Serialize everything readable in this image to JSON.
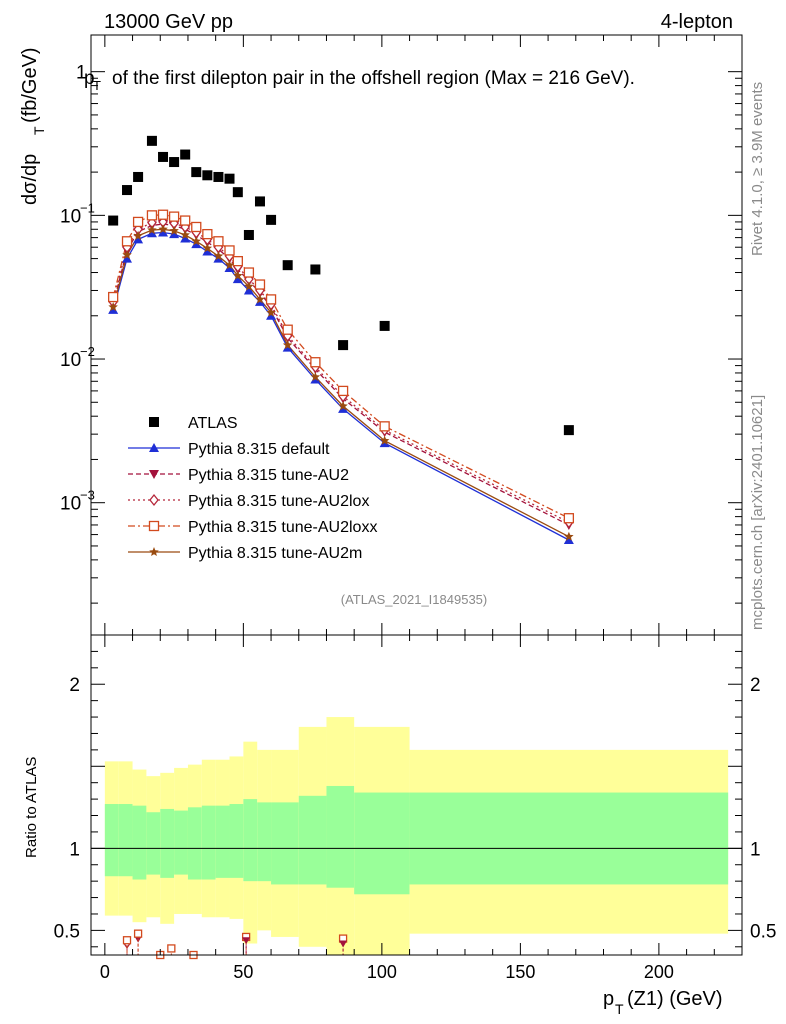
{
  "header": {
    "energy": "13000 GeV pp",
    "channel": "4-lepton"
  },
  "title_pre": "p",
  "title_main": "of the first dilepton pair in the offshell region (Max = 216 GeV).",
  "side_text_top": "Rivet 4.1.0, ≥ 3.9M events",
  "side_text_bottom": "mcplots.cern.ch [arXiv:2401.10621]",
  "watermark": "(ATLAS_2021_I1849535)",
  "chart_data": {
    "type": "scatter",
    "title": "pT of the first dilepton pair in the offshell region (Max = 216 GeV).",
    "ylabel_main": "dσ/dp",
    "ylabel_main_unit": "(fb/GeV)",
    "ylabel_sub": "T",
    "ylabel_ratio": "Ratio to ATLAS",
    "xlabel": "p",
    "xlabel_sub": "T",
    "xlabel_rest": "(Z1) (GeV)",
    "xlim": [
      -5,
      230
    ],
    "ylim_main": [
      0.00012,
      1.8
    ],
    "ylim_ratio": [
      0.35,
      2.3
    ],
    "x_ticks": [
      "0",
      "50",
      "100",
      "150",
      "200"
    ],
    "x_tick_values": [
      0,
      50,
      100,
      150,
      200
    ],
    "y_ticks_main": [
      {
        "v": 1,
        "base": "1",
        "exp": ""
      },
      {
        "v": 0.1,
        "base": "10",
        "exp": "−1"
      },
      {
        "v": 0.01,
        "base": "10",
        "exp": "−2"
      },
      {
        "v": 0.001,
        "base": "10",
        "exp": "−3"
      }
    ],
    "y_ticks_ratio": [
      {
        "v": 0.5,
        "label": "0.5"
      },
      {
        "v": 1,
        "label": "1"
      },
      {
        "v": 2,
        "label": "2"
      }
    ],
    "bin_edges": [
      0,
      5,
      10,
      15,
      20,
      25,
      30,
      35,
      40,
      45,
      50,
      55,
      60,
      70,
      80,
      90,
      110,
      225
    ],
    "bin_centers": [
      2.5,
      7.5,
      12.5,
      17.5,
      22.5,
      27.5,
      32.5,
      37.5,
      42.5,
      47.5,
      52.5,
      57.5,
      62.5,
      70,
      80,
      90,
      100,
      167.5
    ],
    "atlas_x": [
      3,
      8,
      12,
      17,
      21,
      25,
      29,
      33,
      37,
      41,
      45,
      48,
      52,
      56,
      60,
      66,
      76,
      86,
      101,
      167.5
    ],
    "atlas_y": [
      0.092,
      0.15,
      0.185,
      0.33,
      0.255,
      0.235,
      0.265,
      0.2,
      0.19,
      0.185,
      0.18,
      0.145,
      0.073,
      0.125,
      0.093,
      0.045,
      0.042,
      0.0125,
      0.017,
      0.0032
    ],
    "mc_x": [
      3,
      8,
      12,
      17,
      21,
      25,
      29,
      33,
      37,
      41,
      45,
      48,
      52,
      56,
      60,
      66,
      76,
      86,
      101,
      167.5
    ],
    "series": [
      {
        "name": "ATLAS",
        "color": "#000000",
        "marker": "square",
        "style": "none"
      },
      {
        "name": "Pythia 8.315 default",
        "color": "#1f2fd6",
        "marker": "triangle-up",
        "style": "solid",
        "values": [
          0.022,
          0.05,
          0.068,
          0.075,
          0.076,
          0.074,
          0.069,
          0.063,
          0.056,
          0.05,
          0.043,
          0.036,
          0.03,
          0.025,
          0.02,
          0.012,
          0.0072,
          0.0045,
          0.0026,
          0.00055
        ]
      },
      {
        "name": "Pythia 8.315 tune-AU2",
        "color": "#a3123c",
        "marker": "triangle-down",
        "style": "dashed",
        "values": [
          0.024,
          0.057,
          0.077,
          0.085,
          0.087,
          0.085,
          0.08,
          0.073,
          0.065,
          0.058,
          0.05,
          0.042,
          0.035,
          0.029,
          0.023,
          0.014,
          0.0085,
          0.0053,
          0.0031,
          0.0007
        ]
      },
      {
        "name": "Pythia 8.315 tune-AU2lox",
        "color": "#b5263a",
        "marker": "diamond-open",
        "style": "dotted",
        "values": [
          0.025,
          0.06,
          0.08,
          0.089,
          0.09,
          0.088,
          0.083,
          0.076,
          0.068,
          0.06,
          0.052,
          0.044,
          0.036,
          0.03,
          0.024,
          0.0145,
          0.0088,
          0.0055,
          0.0032,
          0.00073
        ]
      },
      {
        "name": "Pythia 8.315 tune-AU2loxx",
        "color": "#d24a1e",
        "marker": "square-open",
        "style": "dashdot",
        "values": [
          0.027,
          0.066,
          0.09,
          0.1,
          0.101,
          0.098,
          0.092,
          0.083,
          0.074,
          0.066,
          0.057,
          0.048,
          0.04,
          0.033,
          0.026,
          0.016,
          0.0095,
          0.006,
          0.0034,
          0.00078
        ]
      },
      {
        "name": "Pythia 8.315 tune-AU2m",
        "color": "#9a4b10",
        "marker": "star",
        "style": "solid",
        "values": [
          0.023,
          0.053,
          0.072,
          0.079,
          0.08,
          0.078,
          0.073,
          0.066,
          0.059,
          0.052,
          0.045,
          0.038,
          0.032,
          0.026,
          0.021,
          0.0125,
          0.0075,
          0.0047,
          0.0027,
          0.00058
        ]
      }
    ],
    "ratio_band_green": {
      "lo": [
        0.83,
        0.83,
        0.81,
        0.84,
        0.82,
        0.84,
        0.81,
        0.81,
        0.82,
        0.82,
        0.8,
        0.8,
        0.78,
        0.78,
        0.76,
        0.72,
        0.78
      ],
      "hi": [
        1.27,
        1.27,
        1.26,
        1.22,
        1.24,
        1.23,
        1.25,
        1.26,
        1.26,
        1.27,
        1.3,
        1.28,
        1.28,
        1.32,
        1.38,
        1.34,
        1.34
      ]
    },
    "ratio_band_yellow": {
      "lo": [
        0.59,
        0.59,
        0.55,
        0.58,
        0.54,
        0.6,
        0.6,
        0.58,
        0.58,
        0.57,
        0.42,
        0.5,
        0.46,
        0.4,
        0.3,
        0.3,
        0.48
      ],
      "hi": [
        1.53,
        1.53,
        1.48,
        1.44,
        1.46,
        1.49,
        1.51,
        1.54,
        1.54,
        1.56,
        1.65,
        1.6,
        1.6,
        1.74,
        1.8,
        1.74,
        1.6
      ]
    },
    "ratio_points": [
      {
        "series": 2,
        "x": 8,
        "y": 0.41
      },
      {
        "series": 2,
        "x": 12,
        "y": 0.45
      },
      {
        "series": 3,
        "x": 8,
        "y": 0.42
      },
      {
        "series": 4,
        "x": 8,
        "y": 0.44
      },
      {
        "series": 4,
        "x": 12,
        "y": 0.48
      },
      {
        "series": 4,
        "x": 20,
        "y": 0.35
      },
      {
        "series": 4,
        "x": 24,
        "y": 0.39
      },
      {
        "series": 4,
        "x": 32,
        "y": 0.35
      },
      {
        "series": 4,
        "x": 51,
        "y": 0.46
      },
      {
        "series": 4,
        "x": 86,
        "y": 0.45
      },
      {
        "series": 2,
        "x": 51,
        "y": 0.44
      },
      {
        "series": 2,
        "x": 86,
        "y": 0.42
      }
    ]
  }
}
